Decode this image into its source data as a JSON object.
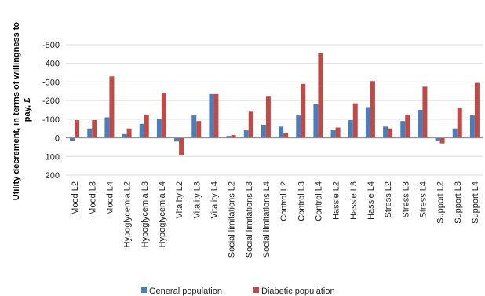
{
  "chart_data": {
    "type": "bar",
    "title": "",
    "xlabel": "",
    "ylabel": "Utility decrement, in terms of willingness to pay, £",
    "ylim": [
      -500,
      200
    ],
    "y_axis_inverted": true,
    "y_ticks": [
      -500,
      -400,
      -300,
      -200,
      -100,
      0,
      100,
      200
    ],
    "y_tick_labels": [
      "-500",
      "-400",
      "-300",
      "-200",
      "-100",
      "0",
      "100",
      "200"
    ],
    "grid": true,
    "legend_position": "bottom",
    "categories": [
      "Mood L2",
      "Mood L3",
      "Mood L4",
      "Hypoglycemia L2",
      "Hypoglycemia L3",
      "Hypoglycemia L4",
      "Vitality L2",
      "Vitality L3",
      "Vitality L4",
      "Social limitations L2",
      "Social limitations L3",
      "Social limitations L4",
      "Control L2",
      "Control L3",
      "Control L4",
      "Hassle L2",
      "Hassle L3",
      "Hassle L4",
      "Stress L2",
      "Stress L3",
      "Stress L4",
      "Support L2",
      "Support L3",
      "Support L4"
    ],
    "series": [
      {
        "name": "General population",
        "color": "#4a7ebb",
        "values": [
          15,
          -50,
          -110,
          -20,
          -75,
          -100,
          20,
          -120,
          -235,
          -10,
          -40,
          -70,
          -60,
          -120,
          -180,
          -40,
          -95,
          -165,
          -60,
          -90,
          -150,
          15,
          -50,
          -120
        ]
      },
      {
        "name": "Diabetic population",
        "color": "#be4b48",
        "values": [
          -95,
          -95,
          -330,
          -50,
          -125,
          -240,
          95,
          -90,
          -235,
          -15,
          -140,
          -225,
          -25,
          -290,
          -455,
          -55,
          -185,
          -305,
          -50,
          -125,
          -275,
          30,
          -160,
          -295
        ]
      }
    ]
  }
}
